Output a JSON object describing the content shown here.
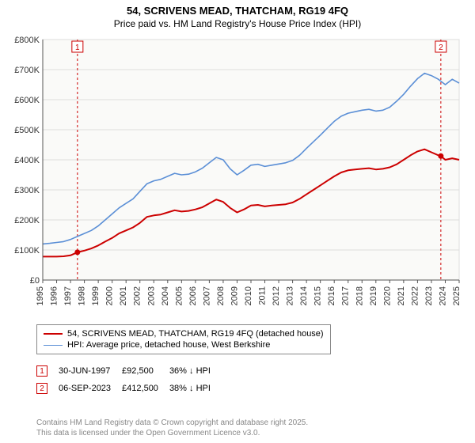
{
  "header": {
    "address": "54, SCRIVENS MEAD, THATCHAM, RG19 4FQ",
    "subtitle": "Price paid vs. HM Land Registry's House Price Index (HPI)"
  },
  "chart": {
    "type": "line",
    "background_color": "#fafaf8",
    "grid_color": "#dddddd",
    "axis_color": "#555555",
    "tick_font_size": 11,
    "x": {
      "start_year": 1995,
      "end_year": 2025,
      "tick_step": 1
    },
    "y": {
      "min": 0,
      "max": 800000,
      "tick_step": 100000,
      "labels": [
        "£0",
        "£100K",
        "£200K",
        "£300K",
        "£400K",
        "£500K",
        "£600K",
        "£700K",
        "£800K"
      ]
    },
    "series": [
      {
        "id": "property",
        "label": "54, SCRIVENS MEAD, THATCHAM, RG19 4FQ (detached house)",
        "color": "#cc0000",
        "line_width": 2,
        "points": [
          [
            1995.0,
            78000
          ],
          [
            1995.5,
            78000
          ],
          [
            1996.0,
            78000
          ],
          [
            1996.5,
            79000
          ],
          [
            1997.0,
            82000
          ],
          [
            1997.5,
            92500
          ],
          [
            1998.0,
            98000
          ],
          [
            1998.5,
            105000
          ],
          [
            1999.0,
            115000
          ],
          [
            1999.5,
            128000
          ],
          [
            2000.0,
            140000
          ],
          [
            2000.5,
            155000
          ],
          [
            2001.0,
            165000
          ],
          [
            2001.5,
            175000
          ],
          [
            2002.0,
            190000
          ],
          [
            2002.5,
            210000
          ],
          [
            2003.0,
            215000
          ],
          [
            2003.5,
            218000
          ],
          [
            2004.0,
            225000
          ],
          [
            2004.5,
            232000
          ],
          [
            2005.0,
            228000
          ],
          [
            2005.5,
            230000
          ],
          [
            2006.0,
            235000
          ],
          [
            2006.5,
            242000
          ],
          [
            2007.0,
            255000
          ],
          [
            2007.5,
            268000
          ],
          [
            2008.0,
            260000
          ],
          [
            2008.5,
            240000
          ],
          [
            2009.0,
            225000
          ],
          [
            2009.5,
            235000
          ],
          [
            2010.0,
            248000
          ],
          [
            2010.5,
            250000
          ],
          [
            2011.0,
            245000
          ],
          [
            2011.5,
            248000
          ],
          [
            2012.0,
            250000
          ],
          [
            2012.5,
            252000
          ],
          [
            2013.0,
            258000
          ],
          [
            2013.5,
            270000
          ],
          [
            2014.0,
            285000
          ],
          [
            2014.5,
            300000
          ],
          [
            2015.0,
            315000
          ],
          [
            2015.5,
            330000
          ],
          [
            2016.0,
            345000
          ],
          [
            2016.5,
            358000
          ],
          [
            2017.0,
            365000
          ],
          [
            2017.5,
            368000
          ],
          [
            2018.0,
            370000
          ],
          [
            2018.5,
            372000
          ],
          [
            2019.0,
            368000
          ],
          [
            2019.5,
            370000
          ],
          [
            2020.0,
            375000
          ],
          [
            2020.5,
            385000
          ],
          [
            2021.0,
            400000
          ],
          [
            2021.5,
            415000
          ],
          [
            2022.0,
            428000
          ],
          [
            2022.5,
            435000
          ],
          [
            2023.0,
            425000
          ],
          [
            2023.5,
            415000
          ],
          [
            2023.68,
            412500
          ],
          [
            2024.0,
            400000
          ],
          [
            2024.5,
            405000
          ],
          [
            2025.0,
            400000
          ]
        ]
      },
      {
        "id": "hpi",
        "label": "HPI: Average price, detached house, West Berkshire",
        "color": "#5b8fd6",
        "line_width": 1.6,
        "points": [
          [
            1995.0,
            120000
          ],
          [
            1995.5,
            122000
          ],
          [
            1996.0,
            125000
          ],
          [
            1996.5,
            128000
          ],
          [
            1997.0,
            135000
          ],
          [
            1997.5,
            145000
          ],
          [
            1998.0,
            155000
          ],
          [
            1998.5,
            165000
          ],
          [
            1999.0,
            180000
          ],
          [
            1999.5,
            200000
          ],
          [
            2000.0,
            220000
          ],
          [
            2000.5,
            240000
          ],
          [
            2001.0,
            255000
          ],
          [
            2001.5,
            270000
          ],
          [
            2002.0,
            295000
          ],
          [
            2002.5,
            320000
          ],
          [
            2003.0,
            330000
          ],
          [
            2003.5,
            335000
          ],
          [
            2004.0,
            345000
          ],
          [
            2004.5,
            355000
          ],
          [
            2005.0,
            350000
          ],
          [
            2005.5,
            352000
          ],
          [
            2006.0,
            360000
          ],
          [
            2006.5,
            372000
          ],
          [
            2007.0,
            390000
          ],
          [
            2007.5,
            408000
          ],
          [
            2008.0,
            400000
          ],
          [
            2008.5,
            370000
          ],
          [
            2009.0,
            350000
          ],
          [
            2009.5,
            365000
          ],
          [
            2010.0,
            382000
          ],
          [
            2010.5,
            385000
          ],
          [
            2011.0,
            378000
          ],
          [
            2011.5,
            382000
          ],
          [
            2012.0,
            386000
          ],
          [
            2012.5,
            390000
          ],
          [
            2013.0,
            398000
          ],
          [
            2013.5,
            415000
          ],
          [
            2014.0,
            438000
          ],
          [
            2014.5,
            460000
          ],
          [
            2015.0,
            482000
          ],
          [
            2015.5,
            505000
          ],
          [
            2016.0,
            528000
          ],
          [
            2016.5,
            545000
          ],
          [
            2017.0,
            555000
          ],
          [
            2017.5,
            560000
          ],
          [
            2018.0,
            565000
          ],
          [
            2018.5,
            568000
          ],
          [
            2019.0,
            562000
          ],
          [
            2019.5,
            565000
          ],
          [
            2020.0,
            575000
          ],
          [
            2020.5,
            595000
          ],
          [
            2021.0,
            618000
          ],
          [
            2021.5,
            645000
          ],
          [
            2022.0,
            670000
          ],
          [
            2022.5,
            688000
          ],
          [
            2023.0,
            680000
          ],
          [
            2023.5,
            668000
          ],
          [
            2024.0,
            650000
          ],
          [
            2024.5,
            668000
          ],
          [
            2025.0,
            655000
          ]
        ]
      }
    ],
    "event_markers": [
      {
        "n": "1",
        "year": 1997.5,
        "color": "#cc0000"
      },
      {
        "n": "2",
        "year": 2023.68,
        "color": "#cc0000"
      }
    ]
  },
  "legend": {
    "items": [
      {
        "color": "#cc0000",
        "width": 2,
        "label": "54, SCRIVENS MEAD, THATCHAM, RG19 4FQ (detached house)"
      },
      {
        "color": "#5b8fd6",
        "width": 1.6,
        "label": "HPI: Average price, detached house, West Berkshire"
      }
    ]
  },
  "events": {
    "rows": [
      {
        "n": "1",
        "color": "#cc0000",
        "date": "30-JUN-1997",
        "price": "£92,500",
        "delta": "36% ↓ HPI"
      },
      {
        "n": "2",
        "color": "#cc0000",
        "date": "06-SEP-2023",
        "price": "£412,500",
        "delta": "38% ↓ HPI"
      }
    ]
  },
  "footer": {
    "line1": "Contains HM Land Registry data © Crown copyright and database right 2025.",
    "line2": "This data is licensed under the Open Government Licence v3.0."
  }
}
